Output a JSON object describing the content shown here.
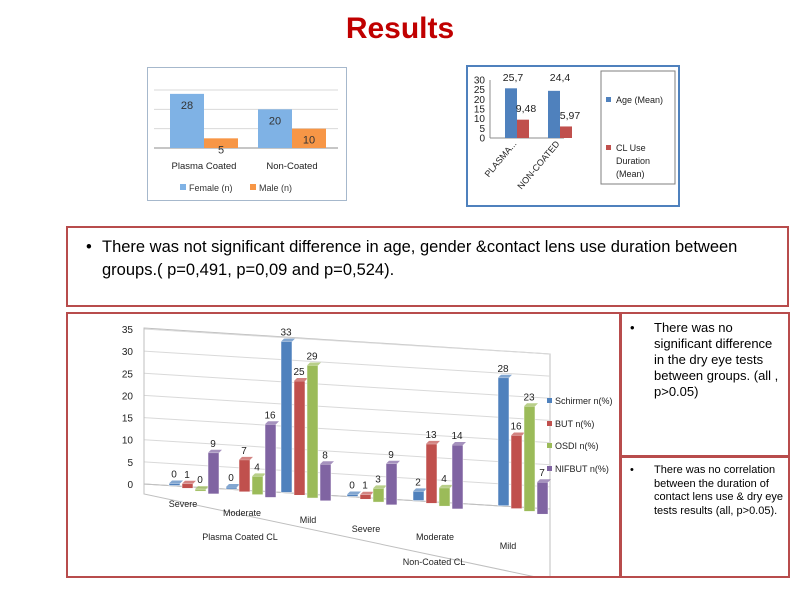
{
  "title": "Results",
  "colors": {
    "blue": "#4f81bd",
    "red": "#c0504d",
    "green": "#9bbb59",
    "purple": "#8064a2",
    "lightblue": "#7fb2e5",
    "orange": "#f79646"
  },
  "chart_data": [
    {
      "type": "bar",
      "categories": [
        "Plasma Coated",
        "Non-Coated"
      ],
      "series": [
        {
          "name": "Female (n)",
          "values": [
            28,
            20
          ]
        },
        {
          "name": "Male (n)",
          "values": [
            5,
            10
          ]
        }
      ],
      "ylim": [
        0,
        30
      ],
      "legend": "bottom"
    },
    {
      "type": "bar",
      "categories": [
        "PLASMA...",
        "NON-COATED"
      ],
      "series": [
        {
          "name": "Age (Mean)",
          "values": [
            "25,7",
            "24,4"
          ],
          "numeric": [
            25.7,
            24.4
          ]
        },
        {
          "name": "CL Use Duration (Mean)",
          "values": [
            "9,48",
            "5,97"
          ],
          "numeric": [
            9.48,
            5.97
          ]
        }
      ],
      "yticks": [
        "0",
        "5",
        "10",
        "15",
        "20",
        "25",
        "30"
      ],
      "ylim": [
        0,
        30
      ],
      "legend": "right"
    },
    {
      "type": "bar",
      "groups": [
        "Plasma Coated CL",
        "Non-Coated CL"
      ],
      "categories": [
        "Severe",
        "Moderate",
        "Mild"
      ],
      "series": [
        {
          "name": "Schirmer n(%)",
          "values": [
            [
              0,
              0,
              33
            ],
            [
              0,
              2,
              28
            ]
          ]
        },
        {
          "name": "BUT n(%)",
          "values": [
            [
              1,
              7,
              25
            ],
            [
              1,
              13,
              16
            ]
          ]
        },
        {
          "name": "OSDI n(%)",
          "values": [
            [
              0,
              4,
              29
            ],
            [
              3,
              4,
              23
            ]
          ]
        },
        {
          "name": "NIFBUT n(%)",
          "values": [
            [
              9,
              16,
              8
            ],
            [
              9,
              14,
              7
            ]
          ]
        }
      ],
      "yticks": [
        "0",
        "5",
        "10",
        "15",
        "20",
        "25",
        "30",
        "35"
      ],
      "ylim": [
        0,
        35
      ],
      "legend": "right"
    }
  ],
  "texts": {
    "difference": "There was not significant difference in age, gender &contact lens use duration between groups.( p=0,491, p=0,09 and p=0,524).",
    "no_difference": "There was no significant difference in the dry eye tests between groups. (all , p>0.05)",
    "no_correlation": "There was no correlation between the duration of contact lens use & dry eye tests results (all, p>0.05)."
  }
}
